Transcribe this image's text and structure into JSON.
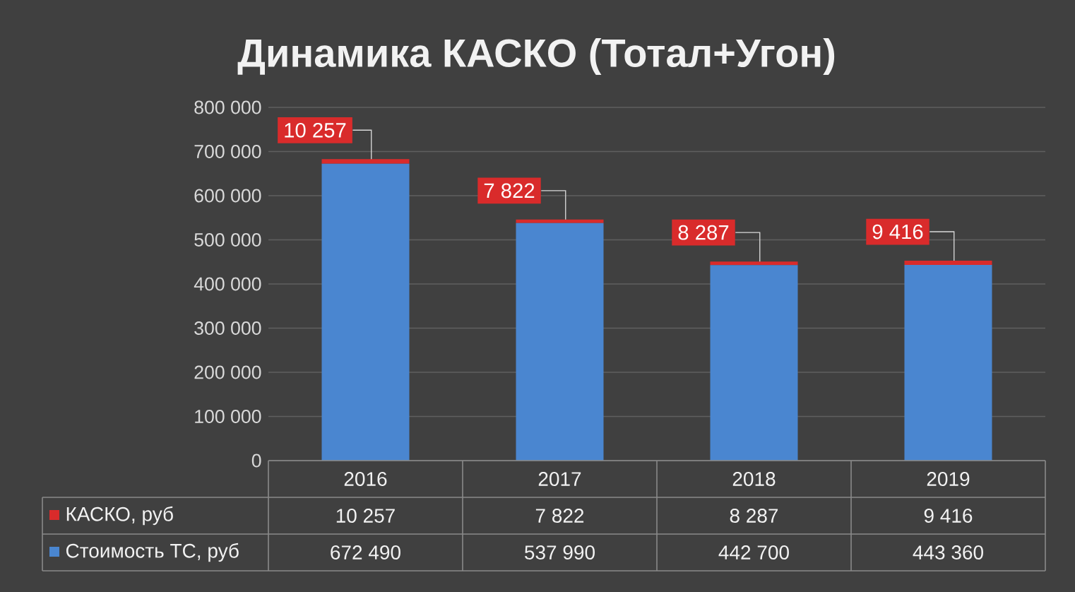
{
  "chart_data": {
    "type": "bar",
    "title": "Динамика КАСКО (Тотал+Угон)",
    "categories": [
      "2016",
      "2017",
      "2018",
      "2019"
    ],
    "stacked": true,
    "series": [
      {
        "name": "Стоимость ТС, руб",
        "color": "#4a86d0",
        "values": [
          672490,
          537990,
          442700,
          443360
        ],
        "value_labels": [
          "672 490",
          "537 990",
          "442 700",
          "443 360"
        ]
      },
      {
        "name": "КАСКО, руб",
        "color": "#d92b2b",
        "values": [
          10257,
          7822,
          8287,
          9416
        ],
        "value_labels": [
          "10 257",
          "7 822",
          "8 287",
          "9 416"
        ]
      }
    ],
    "ylim": [
      0,
      800000
    ],
    "yticks": [
      0,
      {
        "value": 100000,
        "label": "100 000"
      },
      {
        "value": 200000,
        "label": "200 000"
      },
      {
        "value": 300000,
        "label": "300 000"
      },
      {
        "value": 400000,
        "label": "400 000"
      },
      {
        "value": 500000,
        "label": "500 000"
      },
      {
        "value": 600000,
        "label": "600 000"
      },
      {
        "value": 700000,
        "label": "700 000"
      },
      {
        "value": 800000,
        "label": "800 000"
      }
    ],
    "grid": "y",
    "legend": "bottom"
  }
}
